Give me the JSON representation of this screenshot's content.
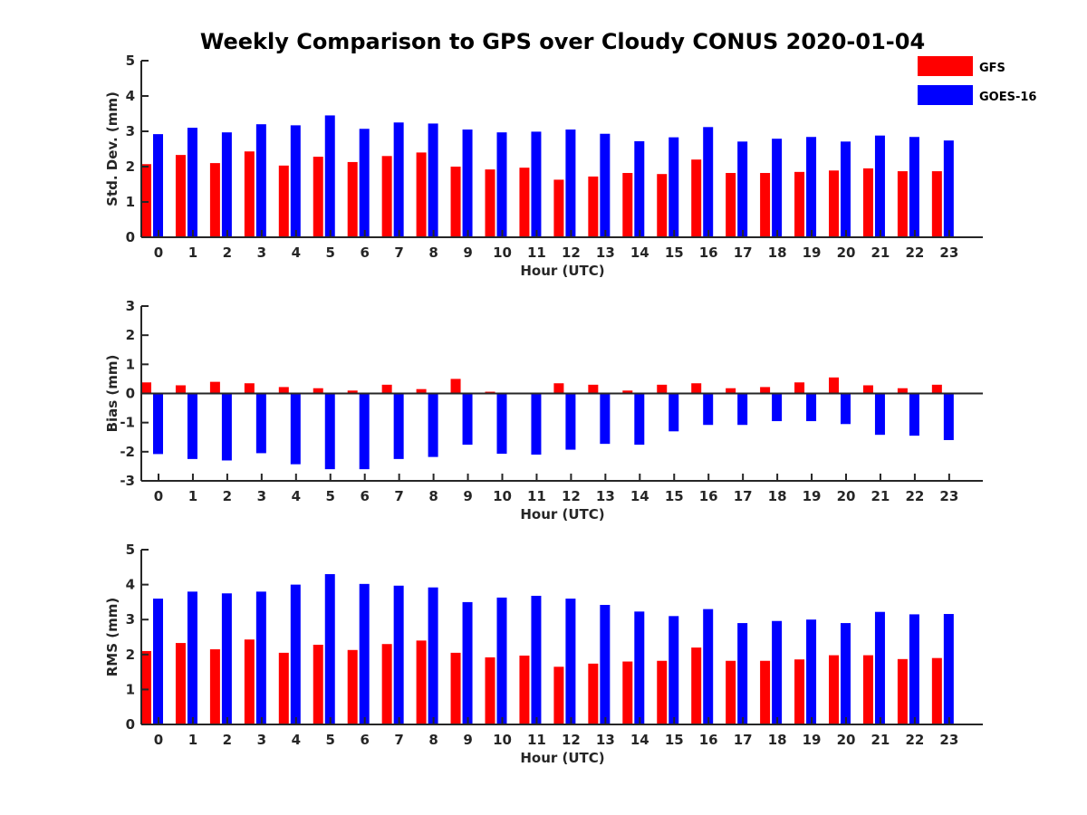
{
  "figure": {
    "title": "Weekly Comparison to GPS over Cloudy CONUS 2020-01-04"
  },
  "legend": {
    "placement": "top-right",
    "entries": [
      {
        "label": "GFS",
        "color": "#ff0000"
      },
      {
        "label": "GOES-16",
        "color": "#0000ff"
      }
    ]
  },
  "chart_data": [
    {
      "type": "bar",
      "ylabel": "Std. Dev. (mm)",
      "xlabel": "Hour (UTC)",
      "ylim": [
        0,
        5
      ],
      "yticks": [
        0,
        1,
        2,
        3,
        4,
        5
      ],
      "grid": false,
      "categories": [
        "0",
        "1",
        "2",
        "3",
        "4",
        "5",
        "6",
        "7",
        "8",
        "9",
        "10",
        "11",
        "12",
        "13",
        "14",
        "15",
        "16",
        "17",
        "18",
        "19",
        "20",
        "21",
        "22",
        "23"
      ],
      "series": [
        {
          "name": "GFS",
          "color": "#ff0000",
          "values": [
            2.07,
            2.33,
            2.1,
            2.43,
            2.03,
            2.28,
            2.13,
            2.3,
            2.4,
            2.0,
            1.92,
            1.97,
            1.63,
            1.72,
            1.82,
            1.79,
            2.2,
            1.82,
            1.82,
            1.85,
            1.89,
            1.95,
            1.87,
            1.87
          ]
        },
        {
          "name": "GOES-16",
          "color": "#0000ff",
          "values": [
            2.92,
            3.1,
            2.97,
            3.2,
            3.17,
            3.45,
            3.07,
            3.25,
            3.22,
            3.05,
            2.97,
            2.99,
            3.05,
            2.93,
            2.72,
            2.83,
            3.12,
            2.71,
            2.79,
            2.84,
            2.71,
            2.88,
            2.84,
            2.74
          ]
        }
      ]
    },
    {
      "type": "bar",
      "ylabel": "Bias (mm)",
      "xlabel": "Hour (UTC)",
      "ylim": [
        -3,
        3
      ],
      "yticks": [
        -3,
        -2,
        -1,
        0,
        1,
        2,
        3
      ],
      "grid": false,
      "zero_line": true,
      "categories": [
        "0",
        "1",
        "2",
        "3",
        "4",
        "5",
        "6",
        "7",
        "8",
        "9",
        "10",
        "11",
        "12",
        "13",
        "14",
        "15",
        "16",
        "17",
        "18",
        "19",
        "20",
        "21",
        "22",
        "23"
      ],
      "series": [
        {
          "name": "GFS",
          "color": "#ff0000",
          "values": [
            0.38,
            0.28,
            0.4,
            0.35,
            0.22,
            0.18,
            0.1,
            0.3,
            0.15,
            0.5,
            0.06,
            0.0,
            0.35,
            0.3,
            0.1,
            0.3,
            0.35,
            0.18,
            0.22,
            0.38,
            0.55,
            0.28,
            0.18,
            0.3
          ]
        },
        {
          "name": "GOES-16",
          "color": "#0000ff",
          "values": [
            -2.08,
            -2.25,
            -2.3,
            -2.05,
            -2.43,
            -2.6,
            -2.6,
            -2.25,
            -2.18,
            -1.76,
            -2.07,
            -2.1,
            -1.93,
            -1.73,
            -1.76,
            -1.3,
            -1.08,
            -1.08,
            -0.95,
            -0.95,
            -1.05,
            -1.42,
            -1.45,
            -1.6
          ]
        }
      ]
    },
    {
      "type": "bar",
      "ylabel": "RMS (mm)",
      "xlabel": "Hour (UTC)",
      "ylim": [
        0,
        5
      ],
      "yticks": [
        0,
        1,
        2,
        3,
        4,
        5
      ],
      "grid": false,
      "categories": [
        "0",
        "1",
        "2",
        "3",
        "4",
        "5",
        "6",
        "7",
        "8",
        "9",
        "10",
        "11",
        "12",
        "13",
        "14",
        "15",
        "16",
        "17",
        "18",
        "19",
        "20",
        "21",
        "22",
        "23"
      ],
      "series": [
        {
          "name": "GFS",
          "color": "#ff0000",
          "values": [
            2.1,
            2.33,
            2.15,
            2.43,
            2.05,
            2.28,
            2.13,
            2.3,
            2.4,
            2.05,
            1.92,
            1.97,
            1.65,
            1.74,
            1.8,
            1.82,
            2.2,
            1.82,
            1.82,
            1.86,
            1.98,
            1.98,
            1.87,
            1.9
          ]
        },
        {
          "name": "GOES-16",
          "color": "#0000ff",
          "values": [
            3.6,
            3.8,
            3.75,
            3.8,
            4.0,
            4.3,
            4.02,
            3.97,
            3.92,
            3.5,
            3.63,
            3.68,
            3.6,
            3.42,
            3.23,
            3.1,
            3.3,
            2.9,
            2.96,
            3.0,
            2.9,
            3.22,
            3.15,
            3.16
          ]
        }
      ]
    }
  ]
}
